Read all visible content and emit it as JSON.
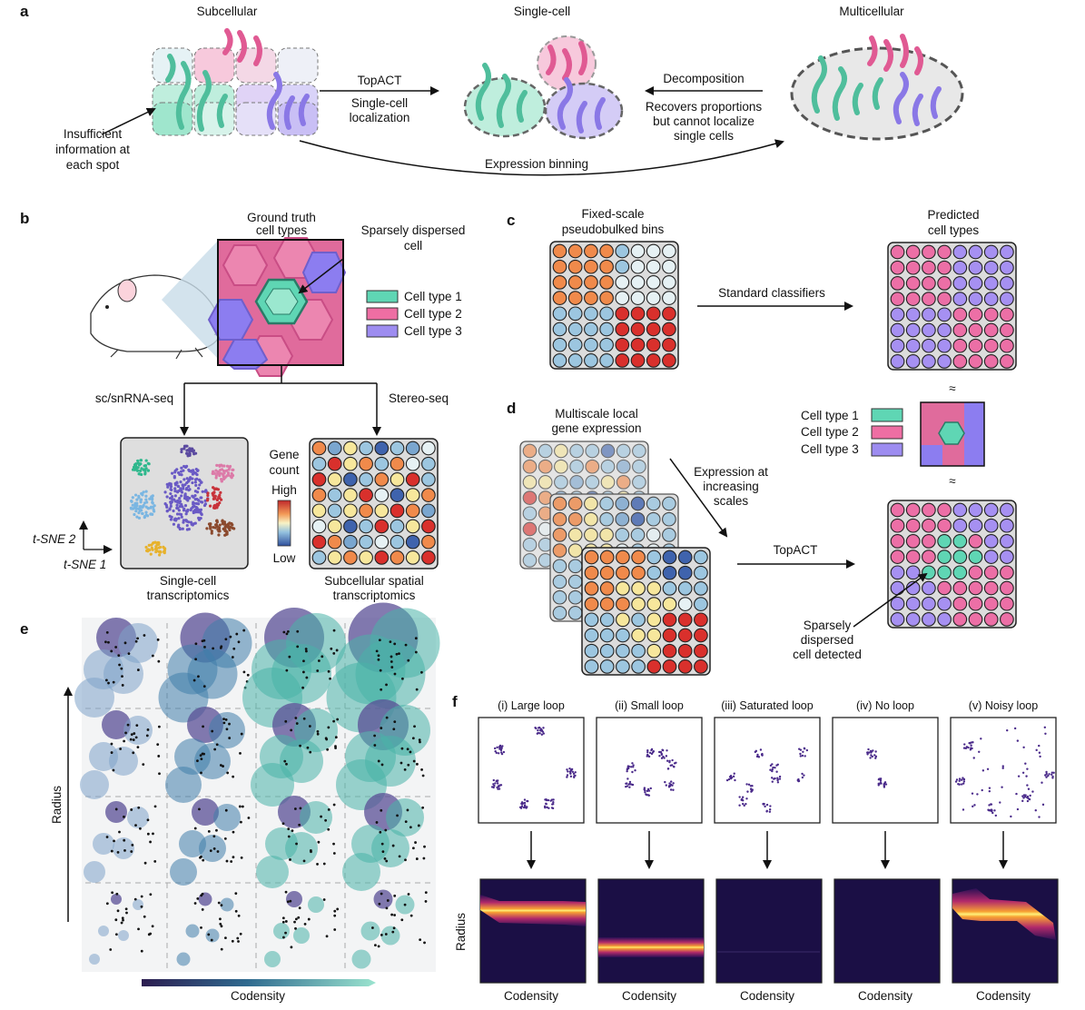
{
  "panels": {
    "a": {
      "letter": "a",
      "subcellular": "Subcellular",
      "single_cell": "Single-cell",
      "multicellular": "Multicellular",
      "topact": "TopACT",
      "localization": [
        "Single-cell",
        "localization"
      ],
      "decomposition": "Decomposition",
      "recovers": [
        "Recovers proportions",
        "but cannot localize",
        "single cells"
      ],
      "insufficient": [
        "Insufficient",
        "information at",
        "each spot"
      ],
      "binning": "Expression binning"
    },
    "b": {
      "letter": "b",
      "ground_truth": [
        "Ground truth",
        "cell types"
      ],
      "sparse": [
        "Sparsely dispersed",
        "cell"
      ],
      "legend": [
        "Cell type 1",
        "Cell type 2",
        "Cell type 3"
      ],
      "scrna": "sc/snRNA-seq",
      "stereo": "Stereo-seq",
      "gene_count": [
        "Gene",
        "count"
      ],
      "high": "High",
      "low": "Low",
      "tsne2": "t-SNE 2",
      "tsne1": "t-SNE 1",
      "single_cell_tx": [
        "Single-cell",
        "transcriptomics"
      ],
      "spatial_tx": [
        "Subcellular spatial",
        "transcriptomics"
      ]
    },
    "c": {
      "letter": "c",
      "fixed": [
        "Fixed-scale",
        "pseudobulked bins"
      ],
      "predicted": [
        "Predicted",
        "cell types"
      ],
      "classifiers": "Standard classifiers"
    },
    "d": {
      "letter": "d",
      "multiscale": [
        "Multiscale local",
        "gene expression"
      ],
      "increasing": [
        "Expression at",
        "increasing",
        "scales"
      ],
      "legend": [
        "Cell type 1",
        "Cell type 2",
        "Cell type 3"
      ],
      "approx": "≈",
      "topact": "TopACT",
      "detected": [
        "Sparsely",
        "dispersed",
        "cell detected"
      ]
    },
    "e": {
      "letter": "e",
      "radius": "Radius",
      "codensity": "Codensity"
    },
    "f": {
      "letter": "f",
      "titles": [
        "(i) Large loop",
        "(ii) Small loop",
        "(iii) Saturated loop",
        "(iv) No loop",
        "(v) Noisy loop"
      ],
      "radius": "Radius",
      "codensity": "Codensity"
    }
  },
  "colors": {
    "type1": "#5fd6b4",
    "type2": "#ee6ea3",
    "type3": "#9d8cf0",
    "purple_dot": "#4a2a8a"
  }
}
